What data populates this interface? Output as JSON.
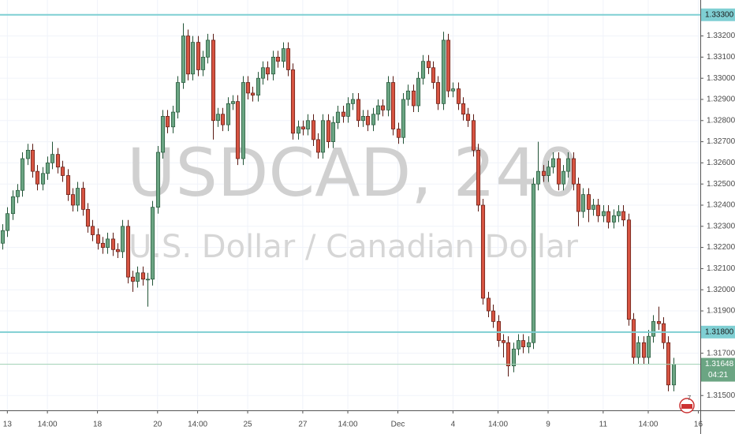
{
  "chart_data": {
    "type": "candlestick",
    "title": "USDCAD, 240",
    "subtitle": "U.S. Dollar / Canadian Dollar",
    "up_color": "#6ba583",
    "down_color": "#d75442",
    "up_border": "#225437",
    "down_border": "#5b1a13",
    "open": [
      1.3222,
      1.3228,
      1.3236,
      1.3244,
      1.3247,
      1.3262,
      1.3266,
      1.3256,
      1.325,
      1.3255,
      1.326,
      1.3264,
      1.3258,
      1.3254,
      1.3245,
      1.324,
      1.3248,
      1.3238,
      1.323,
      1.3226,
      1.3222,
      1.322,
      1.3224,
      1.3219,
      1.3218,
      1.323,
      1.3206,
      1.3204,
      1.3208,
      1.3205,
      1.3205,
      1.3239,
      1.3265,
      1.3282,
      1.3277,
      1.3284,
      1.3298,
      1.332,
      1.3302,
      1.3317,
      1.3304,
      1.331,
      1.3318,
      1.328,
      1.3283,
      1.3278,
      1.3288,
      1.3289,
      1.3262,
      1.3298,
      1.3293,
      1.3292,
      1.33,
      1.3305,
      1.3302,
      1.331,
      1.3308,
      1.3314,
      1.3304,
      1.3274,
      1.3277,
      1.3276,
      1.328,
      1.3271,
      1.3265,
      1.328,
      1.327,
      1.3279,
      1.3284,
      1.3282,
      1.3288,
      1.329,
      1.328,
      1.3282,
      1.3278,
      1.3283,
      1.3287,
      1.3285,
      1.3298,
      1.3276,
      1.3272,
      1.329,
      1.3294,
      1.3287,
      1.33,
      1.3308,
      1.3305,
      1.3298,
      1.3288,
      1.3318,
      1.3294,
      1.3295,
      1.3288,
      1.3283,
      1.328,
      1.3266,
      1.324,
      1.3196,
      1.319,
      1.3185,
      1.3176,
      1.3175,
      1.3164,
      1.3172,
      1.3176,
      1.3173,
      1.3175,
      1.325,
      1.3256,
      1.3254,
      1.3258,
      1.3262,
      1.325,
      1.3256,
      1.3262,
      1.325,
      1.3237,
      1.3245,
      1.3238,
      1.324,
      1.3235,
      1.3237,
      1.3232,
      1.3235,
      1.3237,
      1.3233,
      1.3186,
      1.3168,
      1.3175,
      1.3168,
      1.3178,
      1.3185,
      1.3184,
      1.3175,
      1.3155
    ],
    "high": [
      1.3231,
      1.3239,
      1.3247,
      1.325,
      1.3265,
      1.3269,
      1.3269,
      1.3259,
      1.3258,
      1.3263,
      1.327,
      1.3267,
      1.3261,
      1.3257,
      1.3248,
      1.3251,
      1.3251,
      1.3241,
      1.3233,
      1.3229,
      1.3225,
      1.3227,
      1.3227,
      1.3222,
      1.3233,
      1.3233,
      1.3209,
      1.3211,
      1.3211,
      1.3208,
      1.3242,
      1.3268,
      1.3285,
      1.3285,
      1.3287,
      1.3301,
      1.3326,
      1.3323,
      1.332,
      1.332,
      1.3313,
      1.3321,
      1.3321,
      1.3286,
      1.3286,
      1.3291,
      1.3292,
      1.3292,
      1.3301,
      1.3301,
      1.3296,
      1.3303,
      1.3308,
      1.3308,
      1.3313,
      1.3313,
      1.3317,
      1.3317,
      1.3307,
      1.328,
      1.328,
      1.3283,
      1.3283,
      1.3274,
      1.3283,
      1.3283,
      1.3282,
      1.3287,
      1.3287,
      1.3291,
      1.3293,
      1.3293,
      1.3285,
      1.3285,
      1.3286,
      1.329,
      1.329,
      1.3301,
      1.3301,
      1.3279,
      1.3293,
      1.3297,
      1.3297,
      1.3303,
      1.3311,
      1.3311,
      1.3308,
      1.3301,
      1.3322,
      1.3321,
      1.3298,
      1.3298,
      1.3291,
      1.3286,
      1.3283,
      1.3269,
      1.3243,
      1.3199,
      1.3193,
      1.3188,
      1.3179,
      1.3178,
      1.3175,
      1.3179,
      1.3179,
      1.3178,
      1.3253,
      1.327,
      1.3259,
      1.3261,
      1.3265,
      1.3265,
      1.3259,
      1.3265,
      1.3265,
      1.3253,
      1.3248,
      1.3248,
      1.3243,
      1.3243,
      1.324,
      1.324,
      1.3238,
      1.324,
      1.324,
      1.3236,
      1.3189,
      1.3178,
      1.3178,
      1.3181,
      1.3188,
      1.3192,
      1.3187,
      1.3178,
      1.31678
    ],
    "low": [
      1.3219,
      1.3225,
      1.3233,
      1.3241,
      1.3244,
      1.3259,
      1.3253,
      1.3247,
      1.3247,
      1.3252,
      1.3257,
      1.3255,
      1.3251,
      1.3242,
      1.3237,
      1.3237,
      1.3235,
      1.3227,
      1.3223,
      1.3219,
      1.3217,
      1.3217,
      1.3216,
      1.3215,
      1.3215,
      1.3203,
      1.3199,
      1.3201,
      1.3202,
      1.3192,
      1.3202,
      1.3236,
      1.3262,
      1.3274,
      1.3274,
      1.3281,
      1.3295,
      1.3299,
      1.3299,
      1.3301,
      1.3301,
      1.3307,
      1.3271,
      1.3277,
      1.3275,
      1.3275,
      1.3285,
      1.3259,
      1.3259,
      1.329,
      1.3289,
      1.3289,
      1.3297,
      1.3299,
      1.3299,
      1.3305,
      1.3305,
      1.3301,
      1.3271,
      1.3271,
      1.3273,
      1.3273,
      1.3268,
      1.3262,
      1.3262,
      1.3267,
      1.3267,
      1.3276,
      1.3279,
      1.3279,
      1.3285,
      1.3277,
      1.3277,
      1.3275,
      1.3275,
      1.328,
      1.3282,
      1.3282,
      1.3273,
      1.3269,
      1.3269,
      1.3287,
      1.3284,
      1.3284,
      1.3297,
      1.3302,
      1.3295,
      1.3285,
      1.3285,
      1.3291,
      1.3291,
      1.3285,
      1.328,
      1.3277,
      1.3263,
      1.3237,
      1.3193,
      1.3187,
      1.3182,
      1.3173,
      1.3168,
      1.3159,
      1.3161,
      1.3169,
      1.317,
      1.317,
      1.3172,
      1.3247,
      1.3251,
      1.3251,
      1.3255,
      1.3247,
      1.3247,
      1.3253,
      1.3247,
      1.323,
      1.3234,
      1.3232,
      1.3235,
      1.3232,
      1.3232,
      1.3229,
      1.3229,
      1.3232,
      1.323,
      1.3183,
      1.3165,
      1.3165,
      1.3165,
      1.3165,
      1.3175,
      1.3181,
      1.3172,
      1.3152,
      1.3152
    ],
    "close": [
      1.3228,
      1.3236,
      1.3244,
      1.3247,
      1.3262,
      1.3266,
      1.3256,
      1.325,
      1.3255,
      1.326,
      1.3264,
      1.3258,
      1.3254,
      1.3245,
      1.324,
      1.3248,
      1.3238,
      1.323,
      1.3226,
      1.3222,
      1.322,
      1.3224,
      1.3219,
      1.3218,
      1.323,
      1.3206,
      1.3204,
      1.3208,
      1.3205,
      1.3205,
      1.3239,
      1.3265,
      1.3282,
      1.3277,
      1.3284,
      1.3298,
      1.332,
      1.3302,
      1.3317,
      1.3304,
      1.331,
      1.3318,
      1.328,
      1.3283,
      1.3278,
      1.3288,
      1.3289,
      1.3262,
      1.3298,
      1.3293,
      1.3292,
      1.33,
      1.3305,
      1.3302,
      1.331,
      1.3308,
      1.3314,
      1.3304,
      1.3274,
      1.3277,
      1.3276,
      1.328,
      1.3271,
      1.3265,
      1.328,
      1.327,
      1.3279,
      1.3284,
      1.3282,
      1.3288,
      1.329,
      1.328,
      1.3282,
      1.3278,
      1.3283,
      1.3287,
      1.3285,
      1.3298,
      1.3276,
      1.3272,
      1.329,
      1.3294,
      1.3287,
      1.33,
      1.3308,
      1.3305,
      1.3298,
      1.3288,
      1.3318,
      1.3294,
      1.3295,
      1.3288,
      1.3283,
      1.328,
      1.3266,
      1.324,
      1.3196,
      1.319,
      1.3185,
      1.3176,
      1.3175,
      1.3164,
      1.3172,
      1.3176,
      1.3173,
      1.3175,
      1.325,
      1.3256,
      1.3254,
      1.3258,
      1.3262,
      1.325,
      1.3256,
      1.3262,
      1.325,
      1.3237,
      1.3245,
      1.3238,
      1.324,
      1.3235,
      1.3237,
      1.3232,
      1.3235,
      1.3237,
      1.3233,
      1.3186,
      1.3168,
      1.3175,
      1.3168,
      1.3178,
      1.3185,
      1.3184,
      1.3175,
      1.3155,
      1.31648
    ],
    "xlim": [
      -0.47,
      139.4
    ],
    "xticks": [
      {
        "value": 1,
        "label": "13"
      },
      {
        "value": 9,
        "label": "14:00"
      },
      {
        "value": 19,
        "label": "18"
      },
      {
        "value": 31,
        "label": "20"
      },
      {
        "value": 39,
        "label": "14:00"
      },
      {
        "value": 49,
        "label": "25"
      },
      {
        "value": 60,
        "label": "27"
      },
      {
        "value": 69,
        "label": "14:00"
      },
      {
        "value": 79,
        "label": "Dec"
      },
      {
        "value": 90,
        "label": "4"
      },
      {
        "value": 99,
        "label": "14:00"
      },
      {
        "value": 109,
        "label": "9"
      },
      {
        "value": 120,
        "label": "11"
      },
      {
        "value": 129,
        "label": "14:00"
      },
      {
        "value": 139,
        "label": "16"
      }
    ],
    "ylim": [
      1.3143,
      1.3337
    ],
    "yticks": [
      {
        "value": 1.315,
        "label": "1.31500"
      },
      {
        "value": 1.317,
        "label": "1.31700"
      },
      {
        "value": 1.319,
        "label": "1.31900"
      },
      {
        "value": 1.32,
        "label": "1.32000"
      },
      {
        "value": 1.321,
        "label": "1.32100"
      },
      {
        "value": 1.322,
        "label": "1.32200"
      },
      {
        "value": 1.323,
        "label": "1.32300"
      },
      {
        "value": 1.324,
        "label": "1.32400"
      },
      {
        "value": 1.325,
        "label": "1.32500"
      },
      {
        "value": 1.326,
        "label": "1.32600"
      },
      {
        "value": 1.327,
        "label": "1.32700"
      },
      {
        "value": 1.328,
        "label": "1.32800"
      },
      {
        "value": 1.329,
        "label": "1.32900"
      },
      {
        "value": 1.33,
        "label": "1.33000"
      },
      {
        "value": 1.331,
        "label": "1.33100"
      },
      {
        "value": 1.332,
        "label": "1.33200"
      }
    ],
    "grid": true,
    "hlines": [
      {
        "value": 1.333,
        "label": "1.33300"
      },
      {
        "value": 1.318,
        "label": "1.31800"
      }
    ],
    "hline_color": "#7fcfd3",
    "last_price": {
      "value": 1.31648,
      "label": "1.31648"
    },
    "countdown": "04:21",
    "badge": "7"
  }
}
